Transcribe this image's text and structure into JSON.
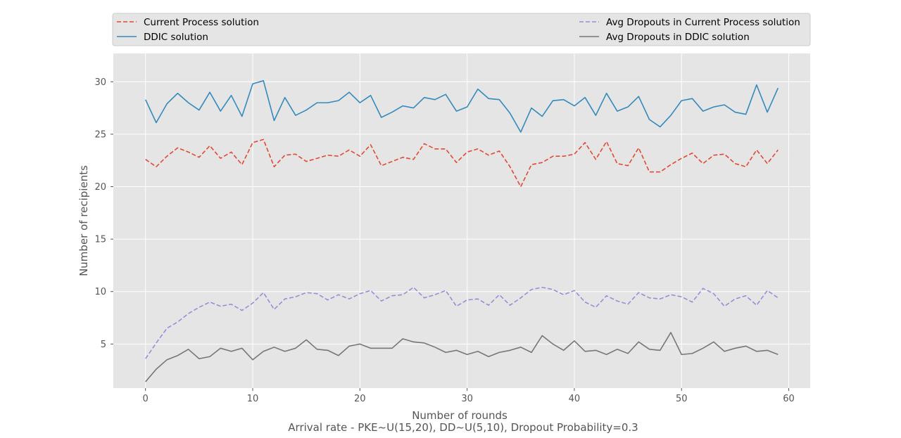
{
  "chart_data": {
    "type": "line",
    "title": "",
    "xlabel": "Number of rounds",
    "ylabel": "Number of recipients",
    "caption": "Arrival rate - PKE~U(15,20), DD~U(5,10), Dropout Probability=0.3",
    "xlim": [
      -3,
      62
    ],
    "ylim": [
      0.8,
      32.7
    ],
    "xticks": [
      0,
      10,
      20,
      30,
      40,
      50,
      60
    ],
    "yticks": [
      5,
      10,
      15,
      20,
      25,
      30
    ],
    "grid": true,
    "legend_position": "top",
    "x": [
      0,
      1,
      2,
      3,
      4,
      5,
      6,
      7,
      8,
      9,
      10,
      11,
      12,
      13,
      14,
      15,
      16,
      17,
      18,
      19,
      20,
      21,
      22,
      23,
      24,
      25,
      26,
      27,
      28,
      29,
      30,
      31,
      32,
      33,
      34,
      35,
      36,
      37,
      38,
      39,
      40,
      41,
      42,
      43,
      44,
      45,
      46,
      47,
      48,
      49,
      50,
      51,
      52,
      53,
      54,
      55,
      56,
      57,
      58,
      59
    ],
    "series": [
      {
        "name": "Current Process solution",
        "color": "#e24a33",
        "style": "dashed",
        "values": [
          22.6,
          21.9,
          22.9,
          23.7,
          23.3,
          22.8,
          23.9,
          22.7,
          23.3,
          22.1,
          24.2,
          24.5,
          21.9,
          23.0,
          23.1,
          22.4,
          22.7,
          23.0,
          22.9,
          23.5,
          22.9,
          24.0,
          22.0,
          22.4,
          22.8,
          22.6,
          24.1,
          23.6,
          23.6,
          22.3,
          23.3,
          23.6,
          23.0,
          23.4,
          21.9,
          20.0,
          22.1,
          22.3,
          22.9,
          22.9,
          23.1,
          24.2,
          22.6,
          24.3,
          22.2,
          22.0,
          23.7,
          21.4,
          21.4,
          22.1,
          22.7,
          23.2,
          22.2,
          23.0,
          23.1,
          22.2,
          21.9,
          23.5,
          22.2,
          23.5
        ]
      },
      {
        "name": "DDIC solution",
        "color": "#348abd",
        "style": "solid",
        "values": [
          28.3,
          26.1,
          27.9,
          28.9,
          28.0,
          27.3,
          29.0,
          27.2,
          28.7,
          26.7,
          29.8,
          30.1,
          26.3,
          28.5,
          26.8,
          27.3,
          28.0,
          28.0,
          28.2,
          29.0,
          28.0,
          28.7,
          26.6,
          27.1,
          27.7,
          27.5,
          28.5,
          28.3,
          28.8,
          27.2,
          27.6,
          29.3,
          28.4,
          28.3,
          27.0,
          25.2,
          27.5,
          26.7,
          28.2,
          28.3,
          27.7,
          28.5,
          26.8,
          28.9,
          27.2,
          27.6,
          28.6,
          26.4,
          25.7,
          26.8,
          28.2,
          28.4,
          27.2,
          27.6,
          27.8,
          27.1,
          26.9,
          29.7,
          27.1,
          29.4
        ]
      },
      {
        "name": "Avg Dropouts in Current Process solution",
        "color": "#988ed5",
        "style": "dashed",
        "values": [
          3.6,
          5.1,
          6.5,
          7.1,
          7.9,
          8.5,
          9.0,
          8.6,
          8.8,
          8.2,
          8.9,
          9.9,
          8.3,
          9.3,
          9.5,
          9.9,
          9.8,
          9.2,
          9.7,
          9.3,
          9.8,
          10.1,
          9.1,
          9.6,
          9.7,
          10.4,
          9.4,
          9.7,
          10.1,
          8.6,
          9.2,
          9.3,
          8.7,
          9.7,
          8.7,
          9.4,
          10.2,
          10.4,
          10.2,
          9.7,
          10.1,
          9.0,
          8.5,
          9.6,
          9.1,
          8.8,
          9.9,
          9.4,
          9.3,
          9.7,
          9.5,
          9.0,
          10.3,
          9.8,
          8.6,
          9.3,
          9.6,
          8.7,
          10.1,
          9.4
        ]
      },
      {
        "name": "Avg Dropouts in DDIC solution",
        "color": "#777777",
        "style": "solid",
        "values": [
          1.4,
          2.6,
          3.5,
          3.9,
          4.5,
          3.6,
          3.8,
          4.6,
          4.3,
          4.6,
          3.5,
          4.3,
          4.7,
          4.3,
          4.6,
          5.4,
          4.5,
          4.4,
          3.9,
          4.8,
          5.0,
          4.6,
          4.6,
          4.6,
          5.5,
          5.2,
          5.1,
          4.7,
          4.2,
          4.4,
          4.0,
          4.3,
          3.8,
          4.2,
          4.4,
          4.7,
          4.2,
          5.8,
          5.0,
          4.4,
          5.3,
          4.3,
          4.4,
          4.0,
          4.5,
          4.1,
          5.2,
          4.5,
          4.4,
          6.1,
          4.0,
          4.1,
          4.6,
          5.2,
          4.3,
          4.6,
          4.8,
          4.3,
          4.4,
          4.0
        ]
      }
    ]
  }
}
